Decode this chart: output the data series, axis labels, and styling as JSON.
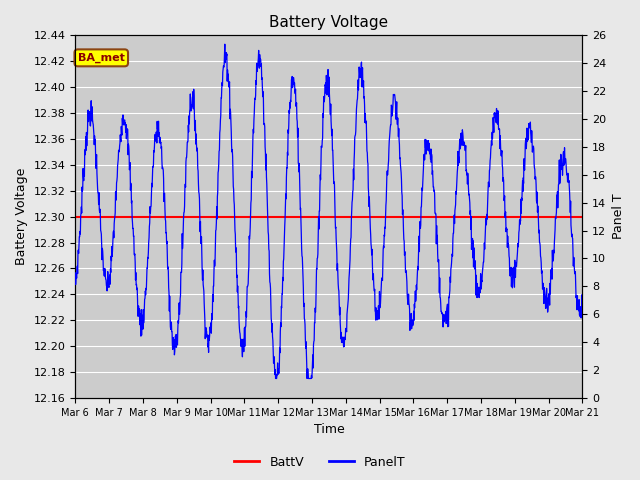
{
  "title": "Battery Voltage",
  "xlabel": "Time",
  "ylabel_left": "Battery Voltage",
  "ylabel_right": "Panel T",
  "ylim_left": [
    12.16,
    12.44
  ],
  "ylim_right": [
    0,
    26
  ],
  "yticks_left": [
    12.16,
    12.18,
    12.2,
    12.22,
    12.24,
    12.26,
    12.28,
    12.3,
    12.32,
    12.34,
    12.36,
    12.38,
    12.4,
    12.42,
    12.44
  ],
  "yticks_right": [
    0,
    2,
    4,
    6,
    8,
    10,
    12,
    14,
    16,
    18,
    20,
    22,
    24,
    26
  ],
  "xtick_labels": [
    "Mar 6",
    "Mar 7",
    "Mar 8",
    "Mar 9",
    "Mar 10",
    "Mar 11",
    "Mar 12",
    "Mar 13",
    "Mar 14",
    "Mar 15",
    "Mar 16",
    "Mar 17",
    "Mar 18",
    "Mar 19",
    "Mar 20",
    "Mar 21"
  ],
  "batt_v_value": 12.3,
  "batt_v_color": "#ff0000",
  "panel_t_color": "#0000ff",
  "bg_color": "#e8e8e8",
  "plot_bg_color": "#cccccc",
  "grid_color": "#ffffff",
  "annotation_text": "BA_met",
  "annotation_bg": "#ffff00",
  "annotation_border": "#8b4513",
  "legend_battv_label": "BattV",
  "legend_panelt_label": "PanelT"
}
